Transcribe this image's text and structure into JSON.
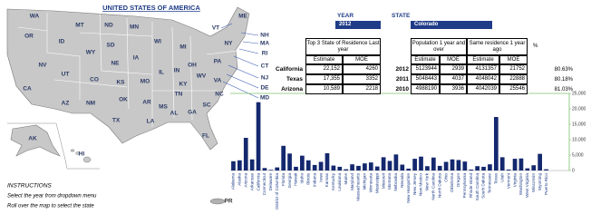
{
  "map": {
    "title": "UNITED STATES OF AMERICA",
    "state_labels": [
      "WA",
      "MT",
      "ND",
      "MN",
      "ME",
      "VT",
      "NH",
      "OR",
      "ID",
      "SD",
      "WI",
      "MI",
      "NY",
      "MA",
      "WY",
      "IA",
      "RI",
      "NV",
      "NE",
      "IL",
      "IN",
      "OH",
      "PA",
      "CT",
      "UT",
      "CO",
      "WV",
      "NJ",
      "CA",
      "KS",
      "MO",
      "KY",
      "VA",
      "DE",
      "MD",
      "TN",
      "NC",
      "AZ",
      "NM",
      "OK",
      "AR",
      "SC",
      "MS",
      "AL",
      "GA",
      "TX",
      "LA",
      "FL",
      "AK",
      "HI",
      "PR"
    ]
  },
  "controls": {
    "year_label": "YEAR",
    "year": "2012",
    "state_label": "STATE",
    "state": "Colorado"
  },
  "top_states_table": {
    "header": "Top 3 State of Residence Last year",
    "columns": [
      "Estimate",
      "MOE"
    ],
    "rows": [
      [
        "California",
        "22,152",
        "4260"
      ],
      [
        "Texas",
        "17,355",
        "3352"
      ],
      [
        "Arizona",
        "10,589",
        "2218"
      ]
    ]
  },
  "residence_table": {
    "headers": [
      "Population 1 year and over",
      "Same residence 1 year ago",
      "%"
    ],
    "columns": [
      "Estimate",
      "MOE",
      "Estimate",
      "MOE"
    ],
    "rows": [
      [
        "2012",
        "5123944",
        "2939",
        "4131357",
        "21752",
        "80.63%"
      ],
      [
        "2011",
        "5048443",
        "4037",
        "4048042",
        "22888",
        "80.18%"
      ],
      [
        "2010",
        "4988190",
        "3936",
        "4042039",
        "25546",
        "81.03%"
      ]
    ]
  },
  "instructions": {
    "title": "INSTRUCTIONS",
    "lines": [
      "Select the year from dropdown menu",
      "Roll over the map to select the state"
    ]
  },
  "chart_data": {
    "type": "bar",
    "color": "#14286e",
    "axis_color": "#7cc36b",
    "categories": [
      "Alabama",
      "Alaska",
      "Arizona",
      "Arkansas",
      "California",
      "Connecticut",
      "Delaware",
      "District of Columbia",
      "Florida",
      "Georgia",
      "Hawaii",
      "Idaho",
      "Illinois",
      "Indiana",
      "Iowa",
      "Kansas",
      "Kentucky",
      "Louisiana",
      "Maine",
      "Maryland",
      "Massachusetts",
      "Michigan",
      "Minnesota",
      "Mississippi",
      "Missouri",
      "Montana",
      "Nebraska",
      "Nevada",
      "New Hampshire",
      "New Jersey",
      "New Mexico",
      "New York",
      "North Carolina",
      "North Dakota",
      "Ohio",
      "Oklahoma",
      "Oregon",
      "Pennsylvania",
      "Rhode Island",
      "South Carolina",
      "South Dakota",
      "Tennessee",
      "Texas",
      "Utah",
      "Vermont",
      "Virginia",
      "Washington",
      "West Virginia",
      "Wisconsin",
      "Wyoming",
      "Puerto Rico"
    ],
    "values": [
      3000,
      3300,
      10589,
      3600,
      22152,
      800,
      200,
      1000,
      8000,
      5500,
      1200,
      4800,
      3300,
      1800,
      2800,
      5600,
      1600,
      1200,
      400,
      2000,
      1500,
      2300,
      2600,
      1300,
      4300,
      3100,
      5200,
      1900,
      600,
      3800,
      4500,
      1400,
      4200,
      1500,
      2800,
      3600,
      3400,
      2900,
      300,
      1400,
      1200,
      2000,
      17355,
      4300,
      300,
      3800,
      3900,
      700,
      1700,
      5400,
      400
    ],
    "ylim": [
      0,
      25000
    ],
    "yticks": [
      0,
      {
        "value": 5000,
        "label": "5,000"
      },
      {
        "value": 10000,
        "label": "10,000"
      },
      {
        "value": 15000,
        "label": "15,000"
      },
      {
        "value": 20000,
        "label": "20,000"
      },
      {
        "value": 25000,
        "label": "25,000"
      }
    ]
  }
}
